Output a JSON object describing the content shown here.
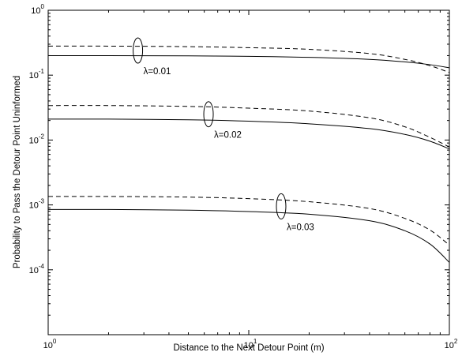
{
  "chart_data": {
    "type": "line",
    "xlabel": "Distance to the Next Detour Point (m)",
    "ylabel": "Probability to Pass the Detour Point Uninformed",
    "xscale": "log",
    "yscale": "log",
    "xlim": [
      1,
      100
    ],
    "ylim": [
      1e-05,
      1
    ],
    "grid": false,
    "x_ticks": [
      {
        "value": 1,
        "base": "10",
        "exp": "0"
      },
      {
        "value": 10,
        "base": "10",
        "exp": "1"
      },
      {
        "value": 100,
        "base": "10",
        "exp": "2"
      }
    ],
    "y_ticks": [
      {
        "value": 1,
        "base": "10",
        "exp": "0"
      },
      {
        "value": 0.1,
        "base": "10",
        "exp": "-1"
      },
      {
        "value": 0.01,
        "base": "10",
        "exp": "-2"
      },
      {
        "value": 0.001,
        "base": "10",
        "exp": "-3"
      },
      {
        "value": 0.0001,
        "base": "10",
        "exp": "-4"
      }
    ],
    "series": [
      {
        "group": "λ=0.01",
        "style": "solid",
        "x": [
          1,
          2,
          5,
          10,
          20,
          40,
          60,
          80,
          100
        ],
        "y": [
          0.2,
          0.2,
          0.198,
          0.195,
          0.188,
          0.175,
          0.16,
          0.145,
          0.13
        ]
      },
      {
        "group": "λ=0.01",
        "style": "dashed",
        "x": [
          1,
          2,
          5,
          10,
          20,
          40,
          60,
          80,
          100
        ],
        "y": [
          0.28,
          0.28,
          0.275,
          0.265,
          0.25,
          0.215,
          0.175,
          0.14,
          0.11
        ]
      },
      {
        "group": "λ=0.02",
        "style": "solid",
        "x": [
          1,
          2,
          5,
          10,
          20,
          40,
          60,
          80,
          100
        ],
        "y": [
          0.021,
          0.021,
          0.0205,
          0.0195,
          0.0178,
          0.015,
          0.0122,
          0.0096,
          0.0073
        ]
      },
      {
        "group": "λ=0.02",
        "style": "dashed",
        "x": [
          1,
          2,
          5,
          10,
          20,
          40,
          60,
          80,
          100
        ],
        "y": [
          0.034,
          0.034,
          0.033,
          0.031,
          0.028,
          0.022,
          0.016,
          0.011,
          0.0078
        ]
      },
      {
        "group": "λ=0.03",
        "style": "solid",
        "x": [
          1,
          2,
          5,
          10,
          20,
          40,
          60,
          80,
          100
        ],
        "y": [
          0.00085,
          0.00085,
          0.00083,
          0.00079,
          0.00072,
          0.00057,
          0.0004,
          0.00025,
          0.00013
        ]
      },
      {
        "group": "λ=0.03",
        "style": "dashed",
        "x": [
          1,
          2,
          5,
          10,
          20,
          40,
          60,
          80,
          100
        ],
        "y": [
          0.00135,
          0.00135,
          0.00132,
          0.00125,
          0.00112,
          0.00088,
          0.00062,
          0.00041,
          0.00024
        ]
      }
    ],
    "annotations": [
      {
        "text": "λ=0.01",
        "x": 2.8,
        "y": 0.24
      },
      {
        "text": "λ=0.02",
        "x": 6.3,
        "y": 0.025
      },
      {
        "text": "λ=0.03",
        "x": 14.5,
        "y": 0.00095
      }
    ]
  }
}
